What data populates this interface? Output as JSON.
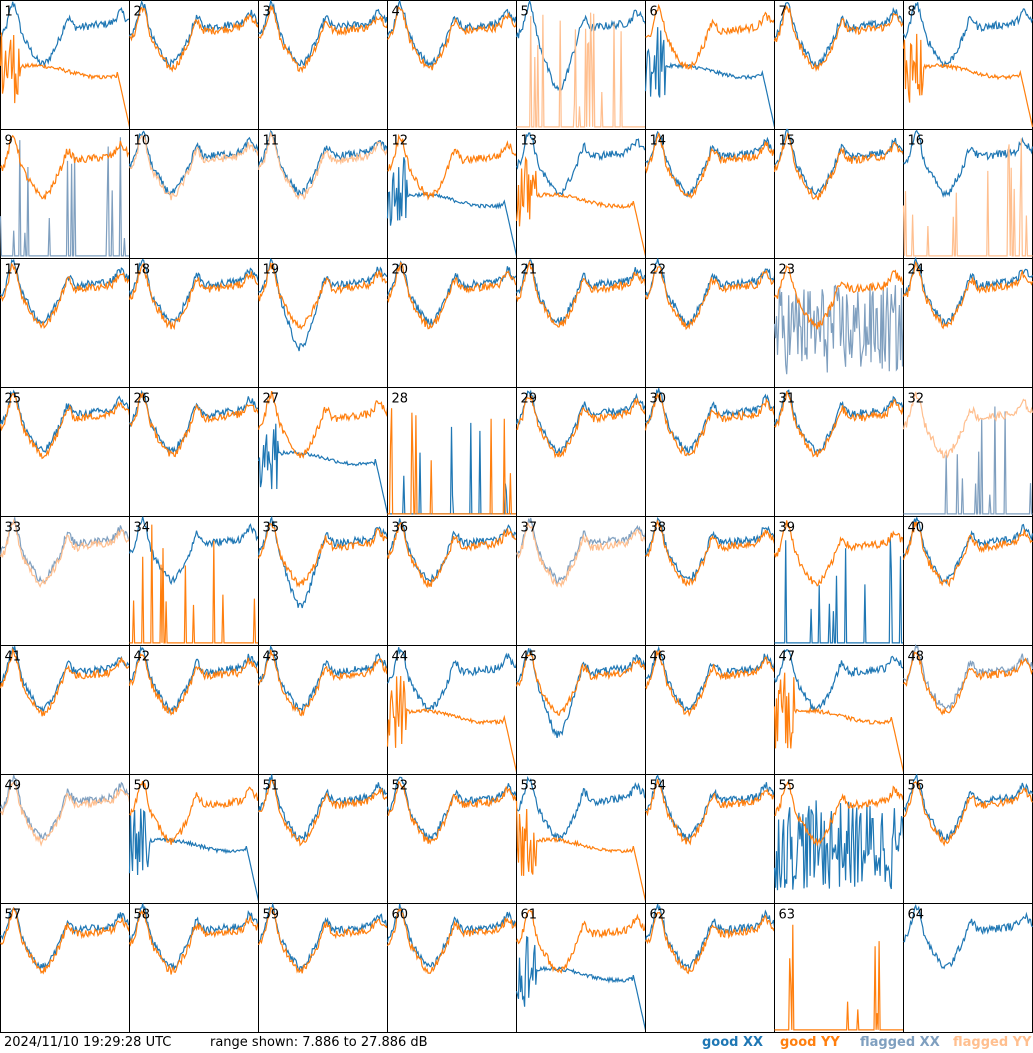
{
  "timestamp": "2024/11/10 19:29:28 UTC",
  "range_text": "range shown: 7.886 to 27.886 dB",
  "colors": {
    "good_xx": "#1f77b4",
    "good_yy": "#ff7f0e",
    "flagged_xx": "#7f9fbf",
    "flagged_yy": "#ffbf8f"
  },
  "chart_data": {
    "type": "line",
    "grid_layout": "8x8 small multiples",
    "y_range_db": [
      7.886,
      27.886
    ],
    "legend": [
      {
        "label": "good XX",
        "color": "#1f77b4"
      },
      {
        "label": "good YY",
        "color": "#ff7f0e"
      },
      {
        "label": "flagged XX",
        "color": "#7f9fbf"
      },
      {
        "label": "flagged YY",
        "color": "#ffbf8f"
      }
    ],
    "panels": [
      {
        "label": "1",
        "xx": "good",
        "yy": "good",
        "xx_pattern": "normal",
        "yy_pattern": "rolloff"
      },
      {
        "label": "2",
        "xx": "good",
        "yy": "good",
        "xx_pattern": "normal",
        "yy_pattern": "normal"
      },
      {
        "label": "3",
        "xx": "good",
        "yy": "good",
        "xx_pattern": "normal",
        "yy_pattern": "normal"
      },
      {
        "label": "4",
        "xx": "good",
        "yy": "good",
        "xx_pattern": "normal",
        "yy_pattern": "normal"
      },
      {
        "label": "5",
        "xx": "good",
        "yy": "flagged",
        "xx_pattern": "dip",
        "yy_pattern": "spikes"
      },
      {
        "label": "6",
        "xx": "good",
        "yy": "good",
        "xx_pattern": "rolloff",
        "yy_pattern": "normal"
      },
      {
        "label": "7",
        "xx": "good",
        "yy": "good",
        "xx_pattern": "normal",
        "yy_pattern": "normal"
      },
      {
        "label": "8",
        "xx": "good",
        "yy": "good",
        "xx_pattern": "normal",
        "yy_pattern": "rolloff"
      },
      {
        "label": "9",
        "xx": "flagged",
        "yy": "good",
        "xx_pattern": "spikes",
        "yy_pattern": "normal"
      },
      {
        "label": "10",
        "xx": "good",
        "yy": "flagged",
        "xx_pattern": "normal",
        "yy_pattern": "normal"
      },
      {
        "label": "11",
        "xx": "good",
        "yy": "flagged",
        "xx_pattern": "normal",
        "yy_pattern": "normal"
      },
      {
        "label": "12",
        "xx": "good",
        "yy": "good",
        "xx_pattern": "rolloff",
        "yy_pattern": "normal"
      },
      {
        "label": "13",
        "xx": "good",
        "yy": "good",
        "xx_pattern": "normal",
        "yy_pattern": "rolloff"
      },
      {
        "label": "14",
        "xx": "good",
        "yy": "good",
        "xx_pattern": "normal",
        "yy_pattern": "normal"
      },
      {
        "label": "15",
        "xx": "good",
        "yy": "good",
        "xx_pattern": "normal",
        "yy_pattern": "normal"
      },
      {
        "label": "16",
        "xx": "good",
        "yy": "flagged",
        "xx_pattern": "normal",
        "yy_pattern": "spikes"
      },
      {
        "label": "17",
        "xx": "good",
        "yy": "good",
        "xx_pattern": "normal",
        "yy_pattern": "normal"
      },
      {
        "label": "18",
        "xx": "good",
        "yy": "good",
        "xx_pattern": "normal",
        "yy_pattern": "normal"
      },
      {
        "label": "19",
        "xx": "good",
        "yy": "good",
        "xx_pattern": "dip",
        "yy_pattern": "normal"
      },
      {
        "label": "20",
        "xx": "good",
        "yy": "good",
        "xx_pattern": "normal",
        "yy_pattern": "normal"
      },
      {
        "label": "21",
        "xx": "good",
        "yy": "good",
        "xx_pattern": "normal",
        "yy_pattern": "normal"
      },
      {
        "label": "22",
        "xx": "good",
        "yy": "good",
        "xx_pattern": "normal",
        "yy_pattern": "normal"
      },
      {
        "label": "23",
        "xx": "flagged",
        "yy": "good",
        "xx_pattern": "noise",
        "yy_pattern": "normal"
      },
      {
        "label": "24",
        "xx": "good",
        "yy": "good",
        "xx_pattern": "normal",
        "yy_pattern": "normal"
      },
      {
        "label": "25",
        "xx": "good",
        "yy": "good",
        "xx_pattern": "normal",
        "yy_pattern": "normal"
      },
      {
        "label": "26",
        "xx": "good",
        "yy": "good",
        "xx_pattern": "normal",
        "yy_pattern": "normal"
      },
      {
        "label": "27",
        "xx": "good",
        "yy": "good",
        "xx_pattern": "rolloff",
        "yy_pattern": "normal"
      },
      {
        "label": "28",
        "xx": "good",
        "yy": "good",
        "xx_pattern": "spikes",
        "yy_pattern": "spikes"
      },
      {
        "label": "29",
        "xx": "good",
        "yy": "good",
        "xx_pattern": "normal",
        "yy_pattern": "normal"
      },
      {
        "label": "30",
        "xx": "good",
        "yy": "good",
        "xx_pattern": "normal",
        "yy_pattern": "normal"
      },
      {
        "label": "31",
        "xx": "good",
        "yy": "good",
        "xx_pattern": "normal",
        "yy_pattern": "normal"
      },
      {
        "label": "32",
        "xx": "flagged",
        "yy": "flagged",
        "xx_pattern": "spikes",
        "yy_pattern": "normal"
      },
      {
        "label": "33",
        "xx": "flagged",
        "yy": "flagged",
        "xx_pattern": "normal",
        "yy_pattern": "normal"
      },
      {
        "label": "34",
        "xx": "good",
        "yy": "good",
        "xx_pattern": "normal",
        "yy_pattern": "spikes"
      },
      {
        "label": "35",
        "xx": "good",
        "yy": "good",
        "xx_pattern": "dip",
        "yy_pattern": "normal"
      },
      {
        "label": "36",
        "xx": "good",
        "yy": "good",
        "xx_pattern": "normal",
        "yy_pattern": "normal"
      },
      {
        "label": "37",
        "xx": "flagged",
        "yy": "flagged",
        "xx_pattern": "normal",
        "yy_pattern": "normal"
      },
      {
        "label": "38",
        "xx": "good",
        "yy": "good",
        "xx_pattern": "normal",
        "yy_pattern": "normal"
      },
      {
        "label": "39",
        "xx": "good",
        "yy": "good",
        "xx_pattern": "spikes",
        "yy_pattern": "normal"
      },
      {
        "label": "40",
        "xx": "good",
        "yy": "good",
        "xx_pattern": "normal",
        "yy_pattern": "normal"
      },
      {
        "label": "41",
        "xx": "good",
        "yy": "good",
        "xx_pattern": "normal",
        "yy_pattern": "normal"
      },
      {
        "label": "42",
        "xx": "good",
        "yy": "good",
        "xx_pattern": "normal",
        "yy_pattern": "normal"
      },
      {
        "label": "43",
        "xx": "good",
        "yy": "good",
        "xx_pattern": "normal",
        "yy_pattern": "normal"
      },
      {
        "label": "44",
        "xx": "good",
        "yy": "good",
        "xx_pattern": "normal",
        "yy_pattern": "rolloff"
      },
      {
        "label": "45",
        "xx": "good",
        "yy": "good",
        "xx_pattern": "dip",
        "yy_pattern": "normal"
      },
      {
        "label": "46",
        "xx": "good",
        "yy": "good",
        "xx_pattern": "normal",
        "yy_pattern": "normal"
      },
      {
        "label": "47",
        "xx": "good",
        "yy": "good",
        "xx_pattern": "normal",
        "yy_pattern": "rolloff"
      },
      {
        "label": "48",
        "xx": "flagged",
        "yy": "good",
        "xx_pattern": "normal",
        "yy_pattern": "normal"
      },
      {
        "label": "49",
        "xx": "flagged",
        "yy": "flagged",
        "xx_pattern": "normal",
        "yy_pattern": "normal"
      },
      {
        "label": "50",
        "xx": "good",
        "yy": "good",
        "xx_pattern": "rolloff",
        "yy_pattern": "normal"
      },
      {
        "label": "51",
        "xx": "good",
        "yy": "good",
        "xx_pattern": "normal",
        "yy_pattern": "normal"
      },
      {
        "label": "52",
        "xx": "good",
        "yy": "good",
        "xx_pattern": "normal",
        "yy_pattern": "normal"
      },
      {
        "label": "53",
        "xx": "good",
        "yy": "good",
        "xx_pattern": "normal",
        "yy_pattern": "rolloff"
      },
      {
        "label": "54",
        "xx": "good",
        "yy": "good",
        "xx_pattern": "normal",
        "yy_pattern": "normal"
      },
      {
        "label": "55",
        "xx": "good",
        "yy": "good",
        "xx_pattern": "noise",
        "yy_pattern": "normal"
      },
      {
        "label": "56",
        "xx": "good",
        "yy": "good",
        "xx_pattern": "normal",
        "yy_pattern": "normal"
      },
      {
        "label": "57",
        "xx": "good",
        "yy": "good",
        "xx_pattern": "normal",
        "yy_pattern": "normal"
      },
      {
        "label": "58",
        "xx": "good",
        "yy": "good",
        "xx_pattern": "normal",
        "yy_pattern": "normal"
      },
      {
        "label": "59",
        "xx": "good",
        "yy": "good",
        "xx_pattern": "normal",
        "yy_pattern": "normal"
      },
      {
        "label": "60",
        "xx": "good",
        "yy": "good",
        "xx_pattern": "normal",
        "yy_pattern": "normal"
      },
      {
        "label": "61",
        "xx": "good",
        "yy": "good",
        "xx_pattern": "rolloff",
        "yy_pattern": "normal"
      },
      {
        "label": "62",
        "xx": "good",
        "yy": "good",
        "xx_pattern": "normal",
        "yy_pattern": "normal"
      },
      {
        "label": "63",
        "xx": "good",
        "yy": "good",
        "xx_pattern": "none",
        "yy_pattern": "spikes"
      },
      {
        "label": "64",
        "xx": "good",
        "yy": "good",
        "xx_pattern": "normal",
        "yy_pattern": "none"
      }
    ]
  }
}
